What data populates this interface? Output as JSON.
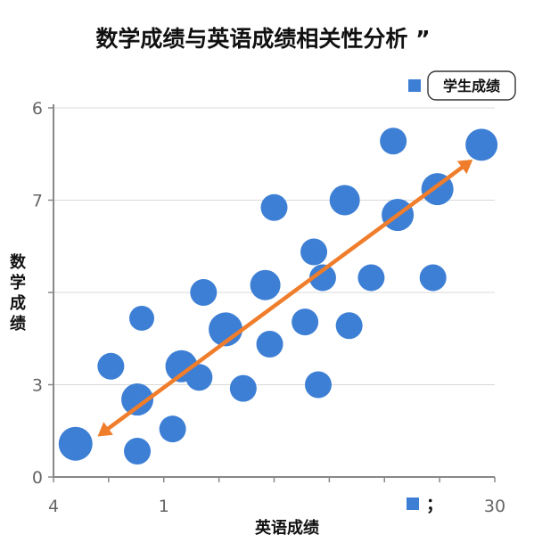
{
  "chart_data": {
    "type": "scatter",
    "title": "数学成绩与英语成绩相关性分析 ”",
    "xlabel": "英语成绩",
    "ylabel": "数学成绩",
    "x_tick_labels": [
      "4",
      "1",
      "30"
    ],
    "y_tick_labels": [
      "0",
      "3",
      "",
      "7",
      "6"
    ],
    "legend": {
      "label": "学生成绩",
      "placement": "top-right"
    },
    "bottom_marker_text": "；",
    "grid": true,
    "colors": {
      "points": "#3d7fd5",
      "trend": "#f07d2b",
      "grid": "#d9d9d9",
      "axis": "#888888"
    },
    "trend_arrow": true,
    "points": [
      {
        "x": 0.05,
        "y": 0.09,
        "size": 19
      },
      {
        "x": 0.13,
        "y": 0.3,
        "size": 15
      },
      {
        "x": 0.19,
        "y": 0.21,
        "size": 18
      },
      {
        "x": 0.19,
        "y": 0.07,
        "size": 15
      },
      {
        "x": 0.2,
        "y": 0.43,
        "size": 14
      },
      {
        "x": 0.27,
        "y": 0.13,
        "size": 15
      },
      {
        "x": 0.29,
        "y": 0.3,
        "size": 18
      },
      {
        "x": 0.33,
        "y": 0.27,
        "size": 15
      },
      {
        "x": 0.34,
        "y": 0.5,
        "size": 15
      },
      {
        "x": 0.39,
        "y": 0.4,
        "size": 19
      },
      {
        "x": 0.43,
        "y": 0.24,
        "size": 15
      },
      {
        "x": 0.48,
        "y": 0.52,
        "size": 17
      },
      {
        "x": 0.49,
        "y": 0.36,
        "size": 15
      },
      {
        "x": 0.5,
        "y": 0.73,
        "size": 15
      },
      {
        "x": 0.57,
        "y": 0.42,
        "size": 15
      },
      {
        "x": 0.59,
        "y": 0.61,
        "size": 15
      },
      {
        "x": 0.6,
        "y": 0.25,
        "size": 15
      },
      {
        "x": 0.61,
        "y": 0.54,
        "size": 15
      },
      {
        "x": 0.67,
        "y": 0.41,
        "size": 15
      },
      {
        "x": 0.66,
        "y": 0.75,
        "size": 17
      },
      {
        "x": 0.72,
        "y": 0.54,
        "size": 15
      },
      {
        "x": 0.77,
        "y": 0.91,
        "size": 15
      },
      {
        "x": 0.78,
        "y": 0.71,
        "size": 18
      },
      {
        "x": 0.86,
        "y": 0.54,
        "size": 15
      },
      {
        "x": 0.87,
        "y": 0.78,
        "size": 18
      },
      {
        "x": 0.97,
        "y": 0.9,
        "size": 18
      }
    ],
    "trend_line": {
      "start": {
        "x": 0.1,
        "y": 0.11
      },
      "end": {
        "x": 0.95,
        "y": 0.86
      }
    }
  }
}
